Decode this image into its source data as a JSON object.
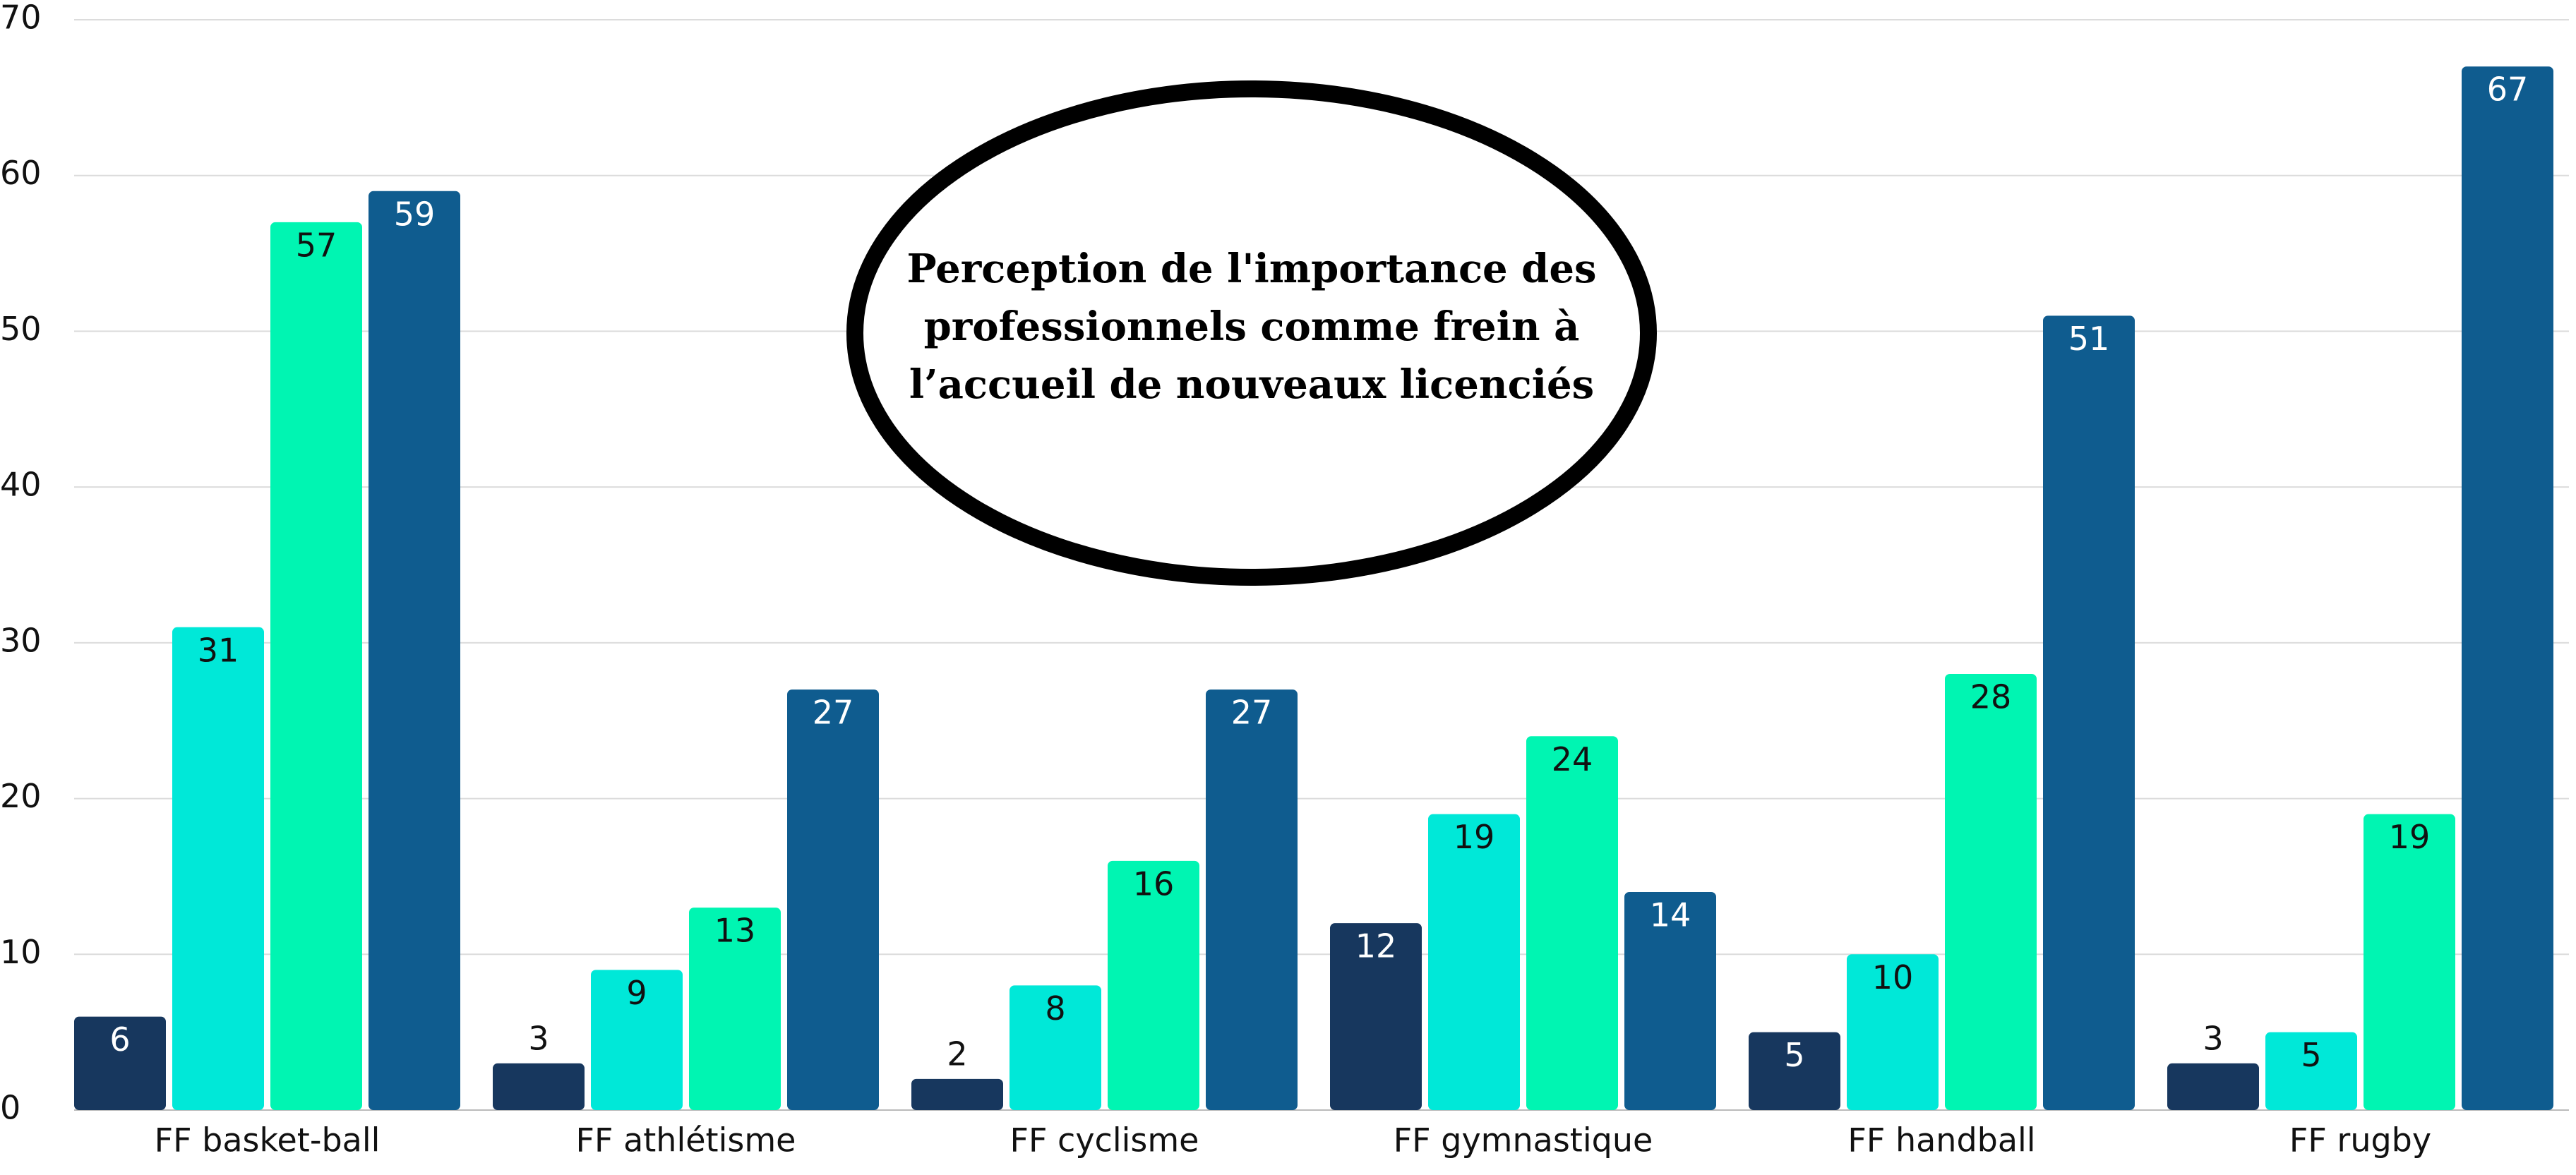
{
  "chart_data": {
    "type": "bar",
    "title": "Perception de l'importance des\nprofessionnels comme frein à\nl’accueil de nouveaux licenciés",
    "categories": [
      "FF basket-ball",
      "FF athlétisme",
      "FF cyclisme",
      "FF gymnastique",
      "FF handball",
      "FF rugby"
    ],
    "series": [
      {
        "color": "#17375e",
        "label_color": "#ffffff",
        "values": [
          6,
          3,
          2,
          12,
          5,
          3
        ]
      },
      {
        "color": "#00e8d8",
        "label_color": "#111111",
        "values": [
          31,
          9,
          8,
          19,
          10,
          5
        ]
      },
      {
        "color": "#00f5b2",
        "label_color": "#111111",
        "values": [
          57,
          13,
          16,
          24,
          28,
          19
        ]
      },
      {
        "color": "#0f5c8f",
        "label_color": "#ffffff",
        "values": [
          59,
          27,
          27,
          14,
          51,
          67
        ]
      }
    ],
    "ylim": [
      0,
      70
    ],
    "yticks": [
      0,
      10,
      20,
      30,
      40,
      50,
      60,
      70
    ],
    "grid": true
  }
}
